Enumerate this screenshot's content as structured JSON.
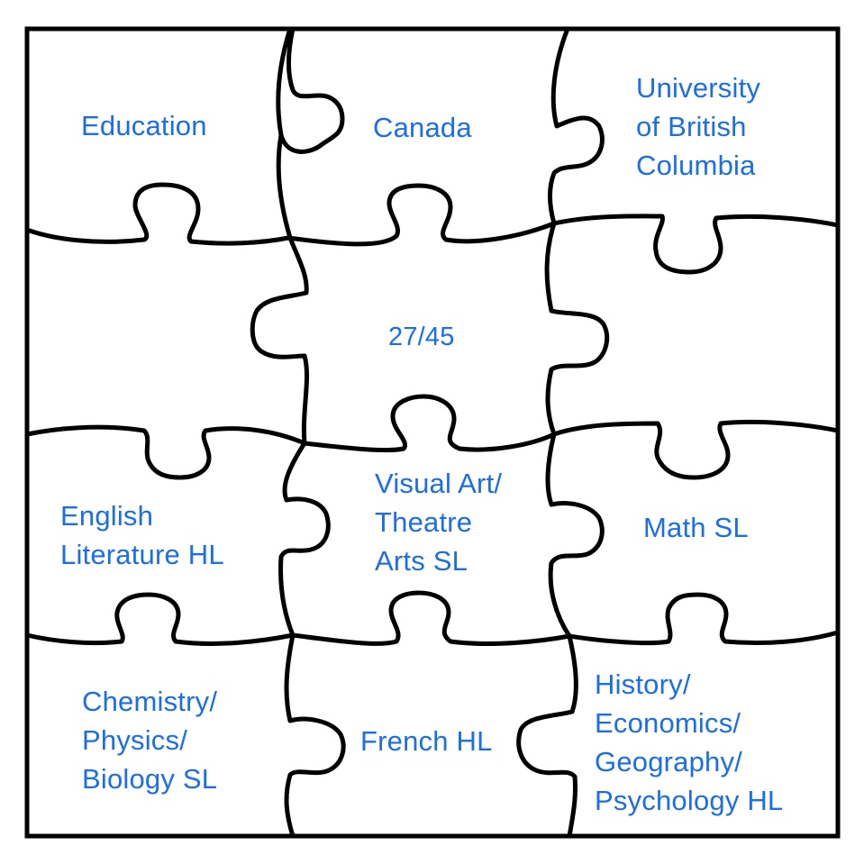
{
  "colors": {
    "text": "#1a6ee8",
    "outline": "#000000",
    "background": "#ffffff"
  },
  "pieces": [
    {
      "id": "education",
      "lines": [
        "Education"
      ]
    },
    {
      "id": "canada",
      "lines": [
        "Canada"
      ]
    },
    {
      "id": "ubc",
      "lines": [
        "University",
        "of British",
        "Columbia"
      ]
    },
    {
      "id": "blank-left",
      "lines": []
    },
    {
      "id": "score",
      "lines": [
        "27/45"
      ]
    },
    {
      "id": "blank-right",
      "lines": []
    },
    {
      "id": "english",
      "lines": [
        "English",
        "Literature HL"
      ]
    },
    {
      "id": "visual-art",
      "lines": [
        "Visual Art/",
        "Theatre",
        "Arts SL"
      ]
    },
    {
      "id": "math",
      "lines": [
        "Math SL"
      ]
    },
    {
      "id": "sciences",
      "lines": [
        "Chemistry/",
        "Physics/",
        "Biology SL"
      ]
    },
    {
      "id": "french",
      "lines": [
        "French HL"
      ]
    },
    {
      "id": "humanities",
      "lines": [
        "History/",
        "Economics/",
        "Geography/",
        "Psychology HL"
      ]
    }
  ]
}
